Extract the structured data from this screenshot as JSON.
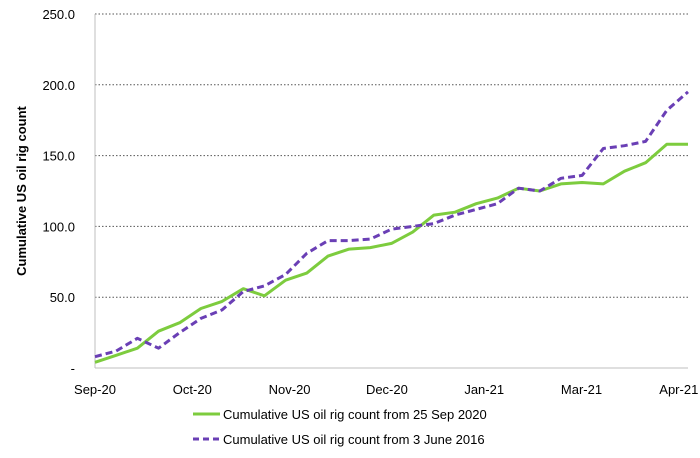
{
  "chart_data": {
    "type": "line",
    "title": "",
    "xlabel": "",
    "ylabel": "Cumulative US oil rig count",
    "ylim": [
      0,
      250
    ],
    "y_ticks": [
      "-",
      "50.0",
      "100.0",
      "150.0",
      "200.0",
      "250.0"
    ],
    "x_ticks": [
      "Sep-20",
      "Oct-20",
      "Nov-20",
      "Dec-20",
      "Jan-21",
      "Mar-21",
      "Apr-21"
    ],
    "grid": "horizontal-dotted",
    "legend_position": "bottom",
    "x_start": "2020-09-25",
    "series": [
      {
        "name": "Cumulative US oil rig count from 25 Sep 2020",
        "color": "#7dcc3e",
        "dash": "solid",
        "values": [
          4,
          9,
          14,
          26,
          32,
          42,
          47,
          56,
          51,
          62,
          67,
          79,
          84,
          85,
          88,
          96,
          108,
          110,
          116,
          120,
          127,
          125,
          130,
          131,
          130,
          139,
          145,
          158,
          158
        ]
      },
      {
        "name": "Cumulative US oil rig count from 3 June 2016",
        "color": "#6a3fb5",
        "dash": "dashed",
        "values": [
          8,
          12,
          21,
          14,
          25,
          35,
          41,
          54,
          58,
          66,
          81,
          90,
          90,
          91,
          98,
          100,
          102,
          108,
          112,
          116,
          127,
          125,
          134,
          136,
          155,
          157,
          160,
          182,
          195
        ]
      }
    ]
  }
}
